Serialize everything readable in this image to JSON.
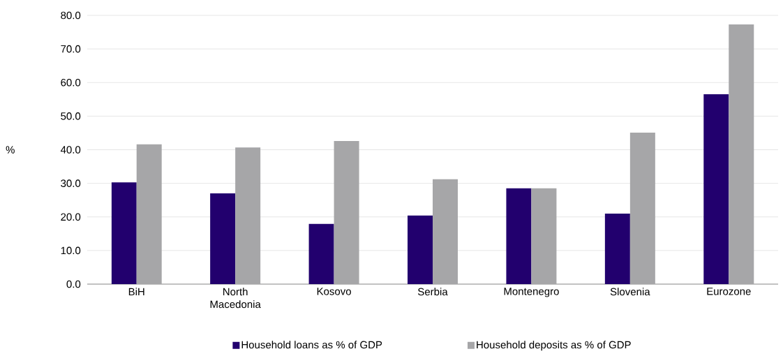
{
  "chart_data": {
    "type": "bar",
    "ylabel": "%",
    "categories": [
      "BiH",
      "North Macedonia",
      "Kosovo",
      "Serbia",
      "Montenegro",
      "Slovenia",
      "Eurozone"
    ],
    "series": [
      {
        "name": "Household loans as % of GDP",
        "color": "#22006e",
        "values": [
          30.3,
          27.0,
          17.9,
          20.4,
          28.5,
          21.0,
          56.5
        ]
      },
      {
        "name": "Household deposits as % of GDP",
        "color": "#a6a6a8",
        "values": [
          41.6,
          40.7,
          42.6,
          31.2,
          28.5,
          45.1,
          77.3
        ]
      }
    ],
    "ylim": [
      0,
      80
    ],
    "yticks": [
      {
        "value": 0,
        "label": "0.0"
      },
      {
        "value": 10,
        "label": "10.0"
      },
      {
        "value": 20,
        "label": "20.0"
      },
      {
        "value": 30,
        "label": "30.0"
      },
      {
        "value": 40,
        "label": "40.0"
      },
      {
        "value": 50,
        "label": "50.0"
      },
      {
        "value": 60,
        "label": "60.0"
      },
      {
        "value": 70,
        "label": "70.0"
      },
      {
        "value": 80,
        "label": "80.0"
      }
    ],
    "grid": "y",
    "legend": "bottom"
  }
}
